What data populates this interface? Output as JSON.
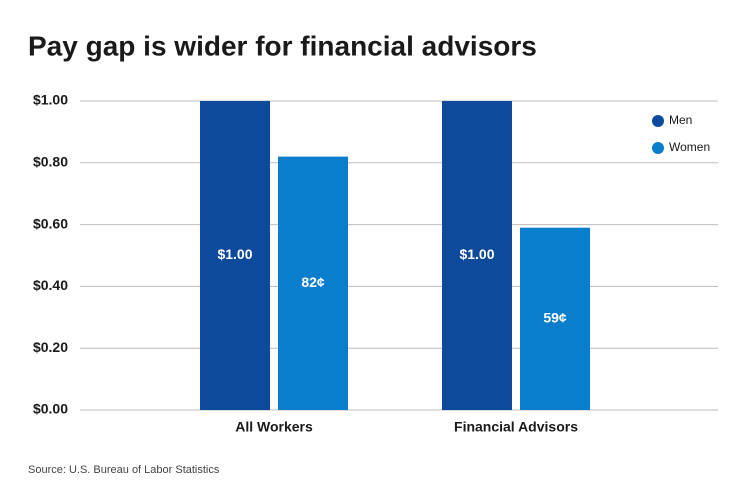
{
  "chart_data": {
    "type": "bar",
    "title": "Pay gap is wider for financial advisors",
    "categories": [
      "All Workers",
      "Financial Advisors"
    ],
    "series": [
      {
        "name": "Men",
        "color": "#0d4a9c",
        "values": [
          1.0,
          1.0
        ],
        "value_labels": [
          "$1.00",
          "$1.00"
        ]
      },
      {
        "name": "Women",
        "color": "#0a7ecd",
        "values": [
          0.82,
          0.59
        ],
        "value_labels": [
          "82¢",
          "59¢"
        ]
      }
    ],
    "ylim": [
      0,
      1
    ],
    "yticks": [
      {
        "value": 0,
        "label": "$0.00"
      },
      {
        "value": 0.2,
        "label": "$0.20"
      },
      {
        "value": 0.4,
        "label": "$0.40"
      },
      {
        "value": 0.6,
        "label": "$0.60"
      },
      {
        "value": 0.8,
        "label": "$0.80"
      },
      {
        "value": 1,
        "label": "$1.00"
      }
    ],
    "grid": true,
    "legend": "top-right",
    "source": "Source: U.S. Bureau of Labor Statistics"
  }
}
